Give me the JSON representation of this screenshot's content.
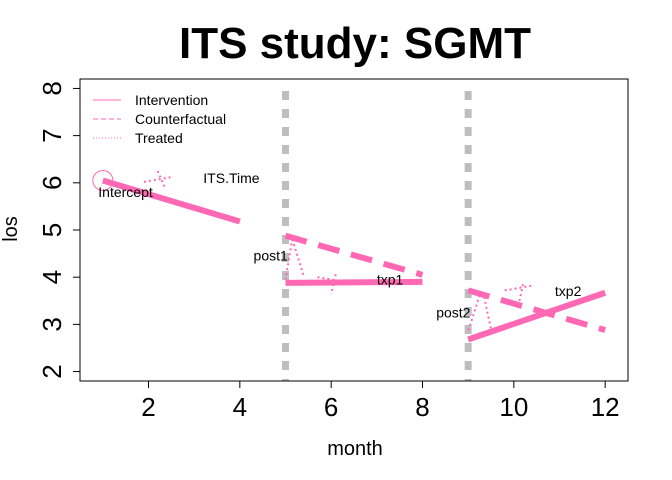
{
  "chart_data": {
    "type": "line",
    "title": "ITS study: SGMT",
    "xlabel": "month",
    "ylabel": "los",
    "xlim": [
      0.5,
      12.5
    ],
    "ylim": [
      1.8,
      8.2
    ],
    "xticks": [
      2,
      4,
      6,
      8,
      10,
      12
    ],
    "yticks": [
      2,
      3,
      4,
      5,
      6,
      7,
      8
    ],
    "grid": false,
    "legend_position": "top-left",
    "colors": {
      "series": "#ff69b4",
      "vline": "#bebebe",
      "axis": "#000000"
    },
    "legend": [
      {
        "label": "Intervention",
        "style": "solid"
      },
      {
        "label": "Counterfactual",
        "style": "dashed"
      },
      {
        "label": "Treated",
        "style": "dotted"
      }
    ],
    "interruptions": [
      5,
      9
    ],
    "series": [
      {
        "name": "Intervention",
        "style": "solid",
        "segments": [
          [
            [
              1,
              6.05
            ],
            [
              4,
              5.18
            ]
          ],
          [
            [
              5,
              3.88
            ],
            [
              8,
              3.9
            ]
          ],
          [
            [
              9,
              2.68
            ],
            [
              12,
              3.67
            ]
          ]
        ]
      },
      {
        "name": "Counterfactual",
        "style": "dashed",
        "segments": [
          [
            [
              5,
              4.88
            ],
            [
              8,
              4.05
            ]
          ],
          [
            [
              9,
              3.72
            ],
            [
              12,
              2.88
            ]
          ]
        ]
      }
    ],
    "annotations": [
      {
        "text": "Intercept",
        "x": 0.9,
        "y": 5.7
      },
      {
        "text": "ITS.Time",
        "x": 3.2,
        "y": 6.0
      },
      {
        "text": "post1",
        "x": 4.3,
        "y": 4.35
      },
      {
        "text": "txp1",
        "x": 7.0,
        "y": 3.85
      },
      {
        "text": "post2",
        "x": 8.3,
        "y": 3.15
      },
      {
        "text": "txp2",
        "x": 10.9,
        "y": 3.6
      }
    ],
    "intercept_marker": {
      "x": 1,
      "y": 6.05
    },
    "dotted_marks": [
      [
        [
          1.9,
          6.02
        ],
        [
          2.5,
          6.12
        ]
      ],
      [
        [
          2.2,
          6.25
        ],
        [
          2.35,
          5.92
        ]
      ],
      [
        [
          5.15,
          4.82
        ],
        [
          5.0,
          3.95
        ]
      ],
      [
        [
          5.15,
          4.8
        ],
        [
          5.4,
          4.02
        ]
      ],
      [
        [
          5.7,
          4.0
        ],
        [
          6.2,
          3.92
        ]
      ],
      [
        [
          6.1,
          4.06
        ],
        [
          6.0,
          3.64
        ]
      ],
      [
        [
          9.25,
          3.62
        ],
        [
          9.0,
          2.85
        ]
      ],
      [
        [
          9.35,
          3.58
        ],
        [
          9.5,
          2.9
        ]
      ],
      [
        [
          9.8,
          3.72
        ],
        [
          10.4,
          3.82
        ]
      ],
      [
        [
          10.2,
          3.85
        ],
        [
          10.1,
          3.4
        ]
      ]
    ]
  }
}
